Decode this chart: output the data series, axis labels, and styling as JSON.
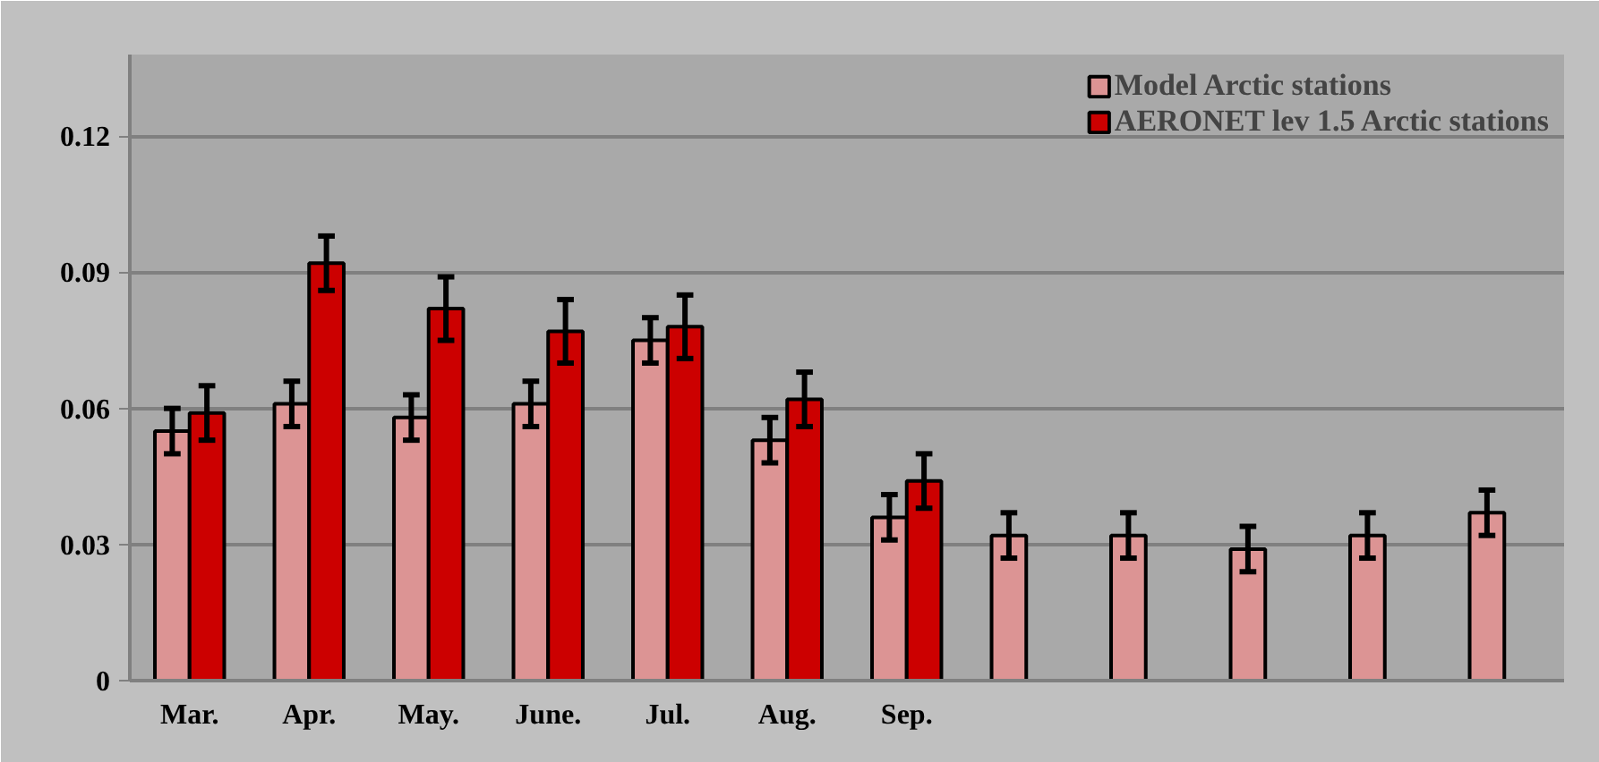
{
  "chart_data": {
    "type": "bar",
    "categories": [
      "Mar.",
      "Apr.",
      "May.",
      "June.",
      "Jul.",
      "Aug.",
      "Sep.",
      null,
      null,
      null,
      null,
      null
    ],
    "series": [
      {
        "name": "Model Arctic stations",
        "color": "#dc9494",
        "values": [
          0.055,
          0.061,
          0.058,
          0.061,
          0.075,
          0.053,
          0.036,
          0.032,
          0.032,
          0.029,
          0.032,
          0.037
        ],
        "errors": [
          0.005,
          0.005,
          0.005,
          0.005,
          0.005,
          0.005,
          0.005,
          0.005,
          0.005,
          0.005,
          0.005,
          0.005
        ]
      },
      {
        "name": "AERONET lev 1.5 Arctic stations",
        "color": "#cc0000",
        "values": [
          0.059,
          0.092,
          0.082,
          0.077,
          0.078,
          0.062,
          0.044,
          null,
          null,
          null,
          null,
          null
        ],
        "errors": [
          0.006,
          0.006,
          0.007,
          0.007,
          0.007,
          0.006,
          0.006,
          null,
          null,
          null,
          null,
          null
        ]
      }
    ],
    "ylim": [
      0,
      0.138
    ],
    "yticks": [
      0,
      0.03,
      0.06,
      0.09,
      0.12
    ],
    "grid": "y",
    "legend": "top right"
  }
}
